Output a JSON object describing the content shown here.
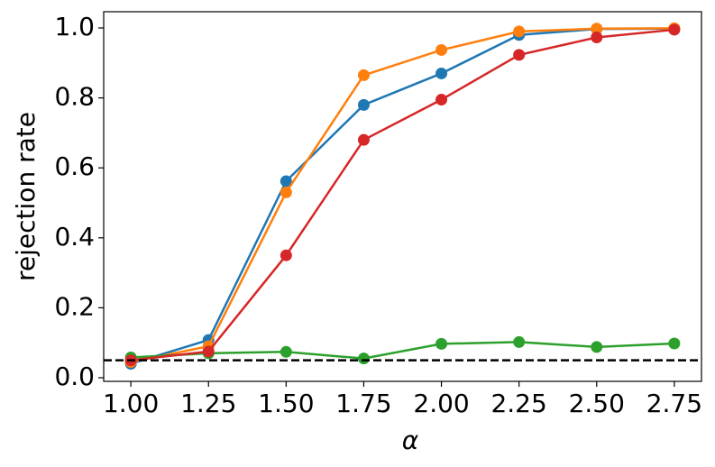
{
  "chart_data": {
    "type": "line",
    "x_label": "α",
    "y_label": "rejection rate",
    "x": [
      1.0,
      1.25,
      1.5,
      1.75,
      2.0,
      2.25,
      2.5,
      2.75
    ],
    "series": [
      {
        "color": "#1f77b4",
        "values": [
          0.04,
          0.108,
          0.562,
          0.78,
          0.87,
          0.98,
          0.997,
          0.998
        ]
      },
      {
        "color": "#ff7f0e",
        "values": [
          0.045,
          0.09,
          0.53,
          0.865,
          0.937,
          0.99,
          0.998,
          0.999
        ]
      },
      {
        "color": "#2ca02c",
        "values": [
          0.058,
          0.07,
          0.074,
          0.055,
          0.097,
          0.102,
          0.088,
          0.098
        ]
      },
      {
        "color": "#d62728",
        "values": [
          0.05,
          0.075,
          0.35,
          0.68,
          0.795,
          0.923,
          0.973,
          0.995
        ]
      }
    ],
    "reference_line": {
      "value": 0.05,
      "color": "#000000",
      "dashed": true
    },
    "xlim": [
      0.9125,
      2.8375
    ],
    "xticks": [
      {
        "value": 1.0,
        "label": "1.00"
      },
      1.25,
      {
        "value": 1.5,
        "label": "1.50"
      },
      1.75,
      {
        "value": 2.0,
        "label": "2.00"
      },
      2.25,
      {
        "value": 2.5,
        "label": "2.50"
      },
      2.75
    ],
    "ylim": [
      -0.0103,
      1.0464
    ],
    "yticks": [
      {
        "value": 0.0,
        "label": "0.0"
      },
      0.2,
      0.4,
      0.6,
      0.8,
      {
        "value": 1.0,
        "label": "1.0"
      }
    ],
    "grid": false
  }
}
